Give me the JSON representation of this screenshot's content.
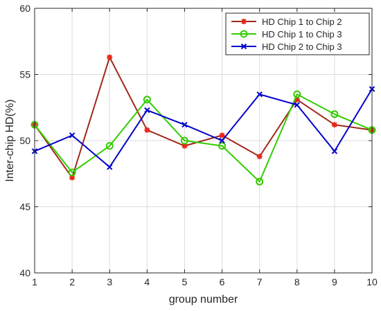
{
  "chart_data": {
    "type": "line",
    "x": [
      1,
      2,
      3,
      4,
      5,
      6,
      7,
      8,
      9,
      10
    ],
    "xlabel": "group number",
    "ylabel": "Inter-chip HD(%)",
    "xlim": [
      1,
      10
    ],
    "ylim": [
      40,
      60
    ],
    "xticks": [
      "1",
      "2",
      "3",
      "4",
      "5",
      "6",
      "7",
      "8",
      "9",
      "10"
    ],
    "yticks": [
      "40",
      "45",
      "50",
      "55",
      "60"
    ],
    "grid": true,
    "legend_position": "top-right",
    "series": [
      {
        "name": "HD Chip 1 to Chip 2",
        "color": "#a0281a",
        "marker": "asterisk",
        "marker_color": "#e8281a",
        "values": [
          51.2,
          47.2,
          56.3,
          50.8,
          49.6,
          50.4,
          48.8,
          53.1,
          51.2,
          50.8
        ]
      },
      {
        "name": "HD Chip 1 to Chip 3",
        "color": "#33cc00",
        "marker": "circle",
        "marker_color": "#33cc00",
        "values": [
          51.2,
          47.6,
          49.6,
          53.1,
          50.0,
          49.6,
          46.9,
          53.5,
          52.0,
          50.8
        ]
      },
      {
        "name": "HD Chip 2 to Chip 3",
        "color": "#0000cc",
        "marker": "x",
        "marker_color": "#0000cc",
        "values": [
          49.2,
          50.4,
          48.0,
          52.3,
          51.2,
          50.0,
          53.5,
          52.7,
          49.2,
          53.9
        ]
      }
    ]
  }
}
